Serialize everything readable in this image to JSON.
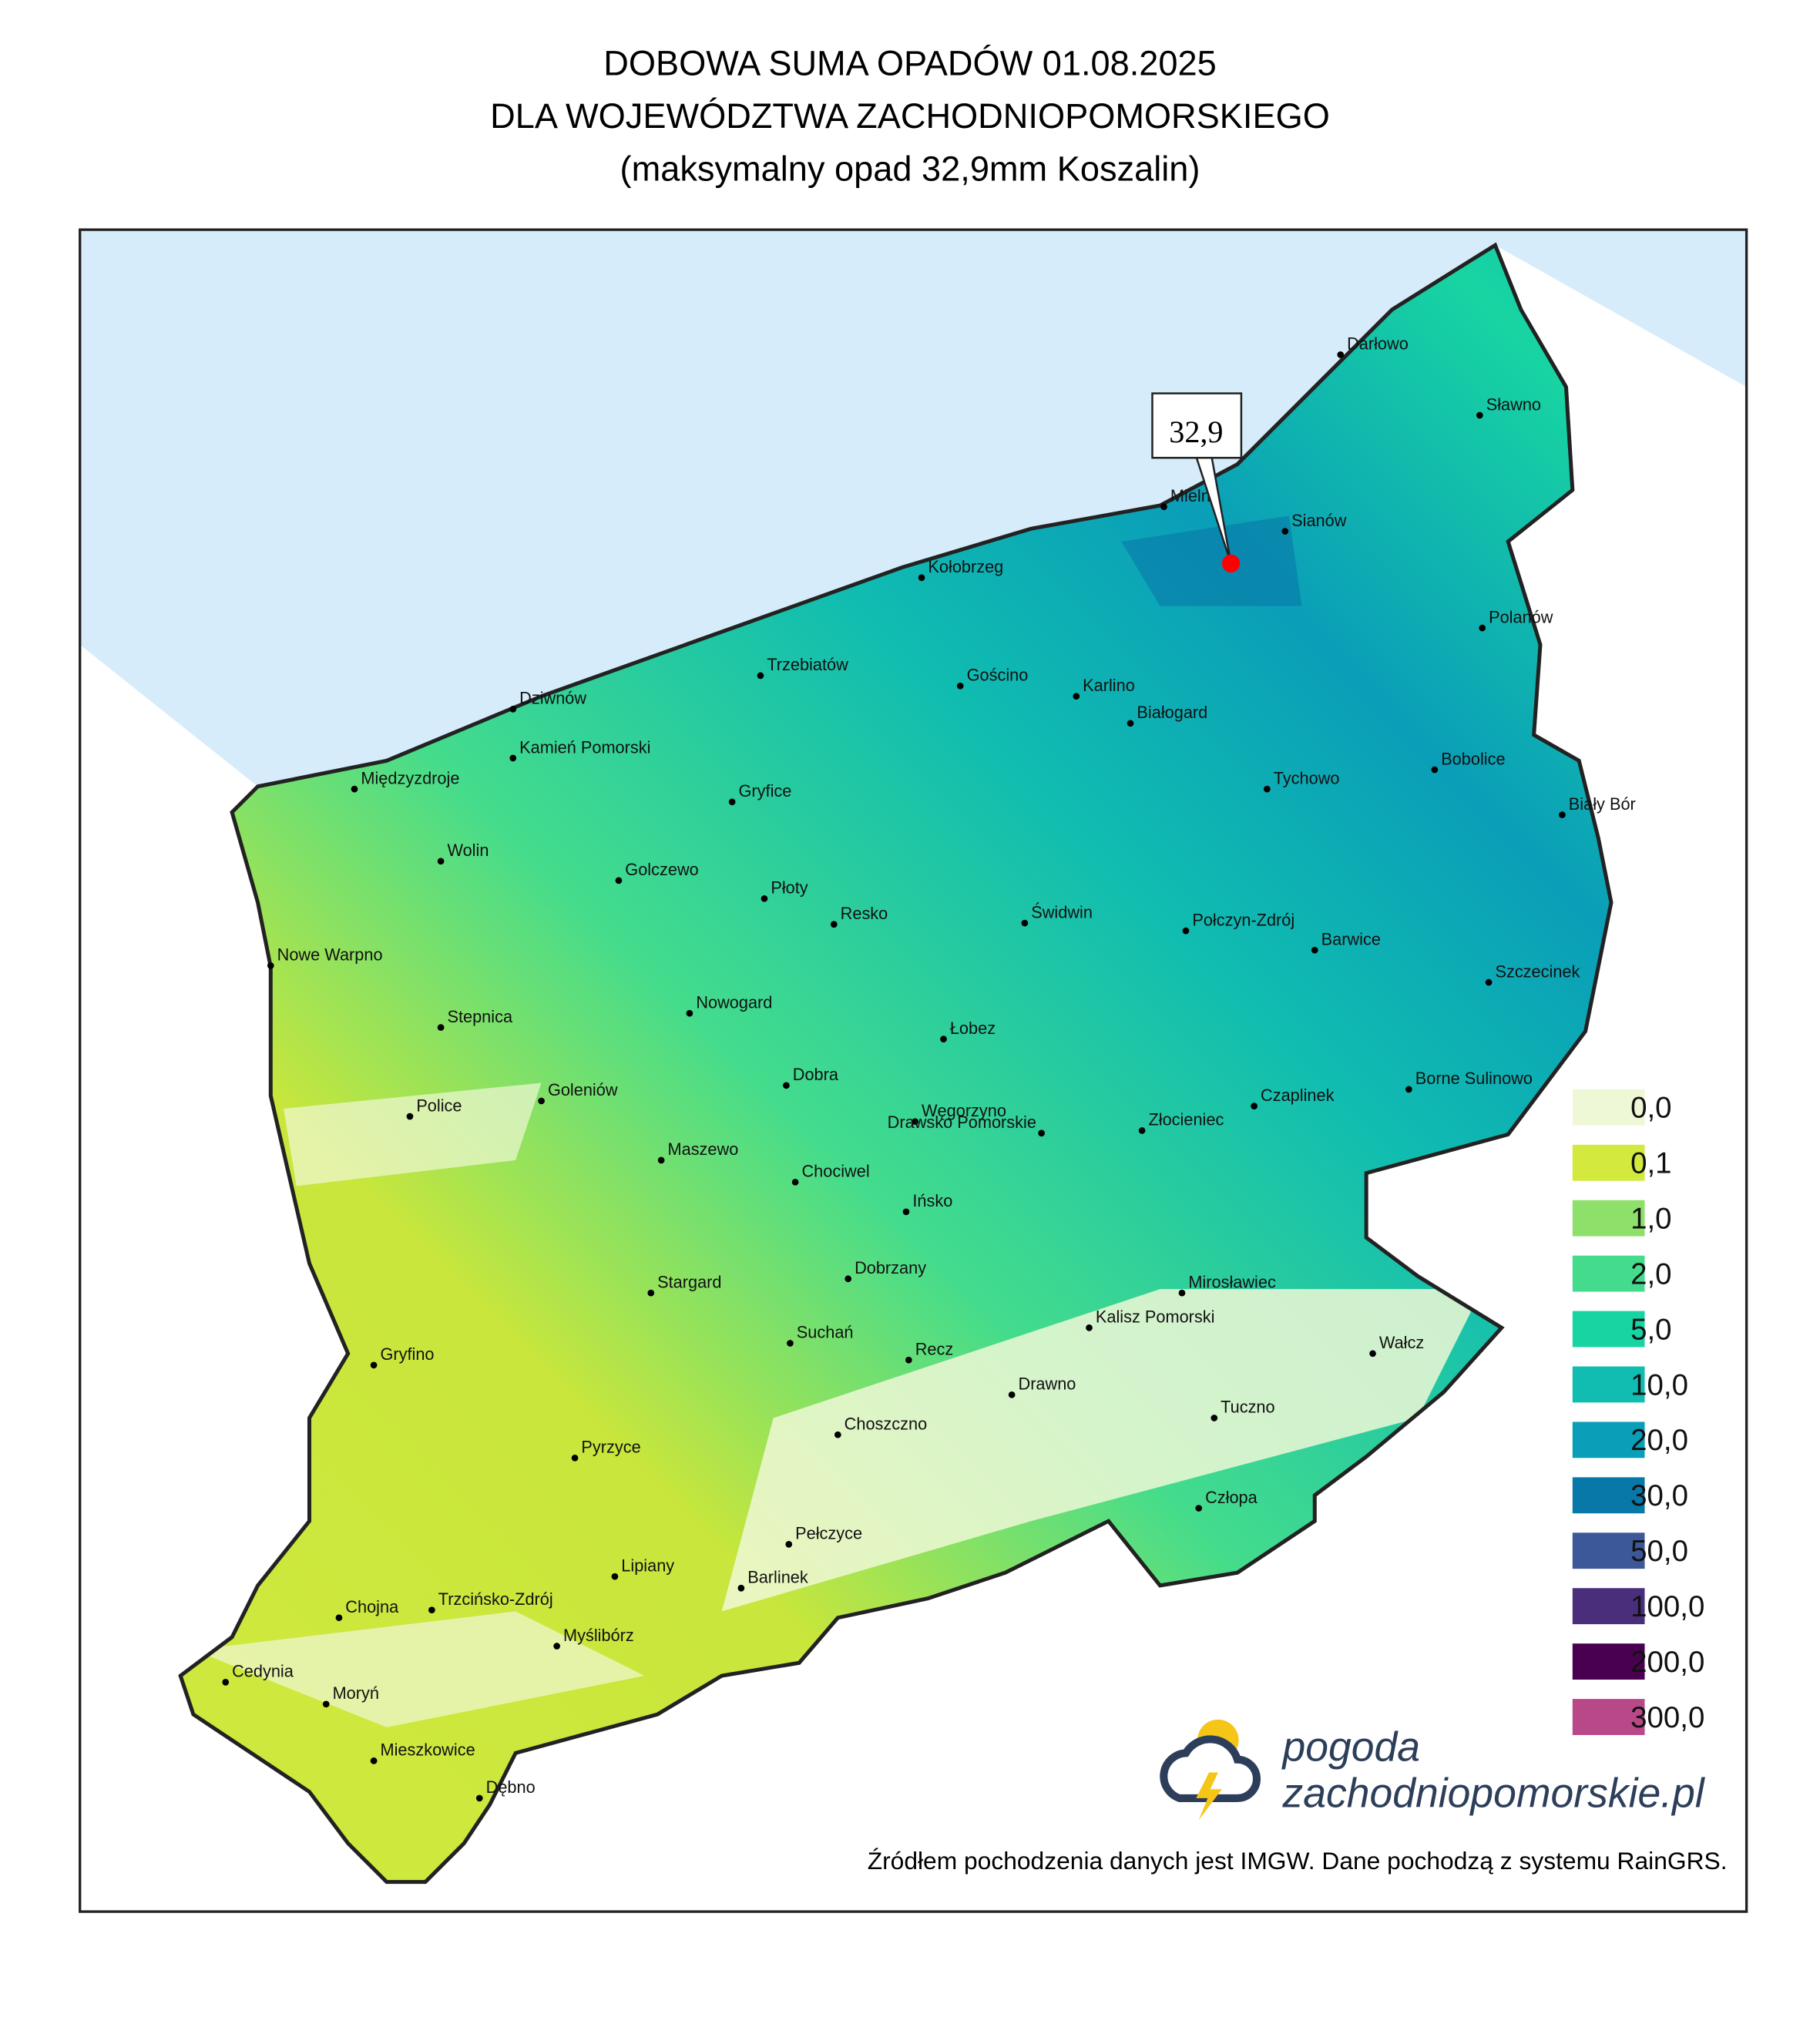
{
  "title": {
    "line1": "DOBOWA SUMA OPADÓW 01.08.2025",
    "line2": "DLA WOJEWÓDZTWA ZACHODNIOPOMORSKIEGO",
    "line3": "(maksymalny opad 32,9mm Koszalin)"
  },
  "max_marker": {
    "label": "32,9",
    "color": "#ff0000"
  },
  "cities": [
    "Darłowo",
    "Sławno",
    "Mielno",
    "Sianów",
    "Kołobrzeg",
    "Polanów",
    "Trzebiatów",
    "Gościno",
    "Karlino",
    "Białogard",
    "Dziwnów",
    "Kamień Pomorski",
    "Międzyzdroje",
    "Gryfice",
    "Bobolice",
    "Tychowo",
    "Biały Bór",
    "Wolin",
    "Golczewo",
    "Płoty",
    "Resko",
    "Świdwin",
    "Połczyn-Zdrój",
    "Barwice",
    "Nowe Warpno",
    "Szczecinek",
    "Stepnica",
    "Nowogard",
    "Łobez",
    "Dobra",
    "Czaplinek",
    "Borne Sulinowo",
    "Goleniów",
    "Police",
    "Węgorzyno",
    "Drawsko Pomorskie",
    "Złocieniec",
    "Maszewo",
    "Chociwel",
    "Ińsko",
    "Stargard",
    "Dobrzany",
    "Mirosławiec",
    "Kalisz Pomorski",
    "Suchań",
    "Recz",
    "Wałcz",
    "Gryfino",
    "Drawno",
    "Choszczno",
    "Tuczno",
    "Pyrzyce",
    "Człopa",
    "Pełczyce",
    "Lipiany",
    "Barlinek",
    "Chojna",
    "Trzcińsko-Zdrój",
    "Myślibórz",
    "Cedynia",
    "Moryń",
    "Mieszkowice",
    "Dębno"
  ],
  "legend": [
    {
      "label": "0,0",
      "color": "#eff8d6"
    },
    {
      "label": "0,1",
      "color": "#d3e93e"
    },
    {
      "label": "1,0",
      "color": "#8de06a"
    },
    {
      "label": "2,0",
      "color": "#44dc8c"
    },
    {
      "label": "5,0",
      "color": "#18d4a2"
    },
    {
      "label": "10,0",
      "color": "#10bdb0"
    },
    {
      "label": "20,0",
      "color": "#0a9eb8"
    },
    {
      "label": "30,0",
      "color": "#0878a8"
    },
    {
      "label": "50,0",
      "color": "#3c5898"
    },
    {
      "label": "100,0",
      "color": "#4a2e7c"
    },
    {
      "label": "200,0",
      "color": "#4a0050"
    },
    {
      "label": "300,0",
      "color": "#b84888"
    }
  ],
  "logo": {
    "line1": "pogoda",
    "line2": "zachodniopomorskie.pl"
  },
  "source": "Źródłem pochodzenia danych jest IMGW. Dane pochodzą z systemu RainGRS."
}
